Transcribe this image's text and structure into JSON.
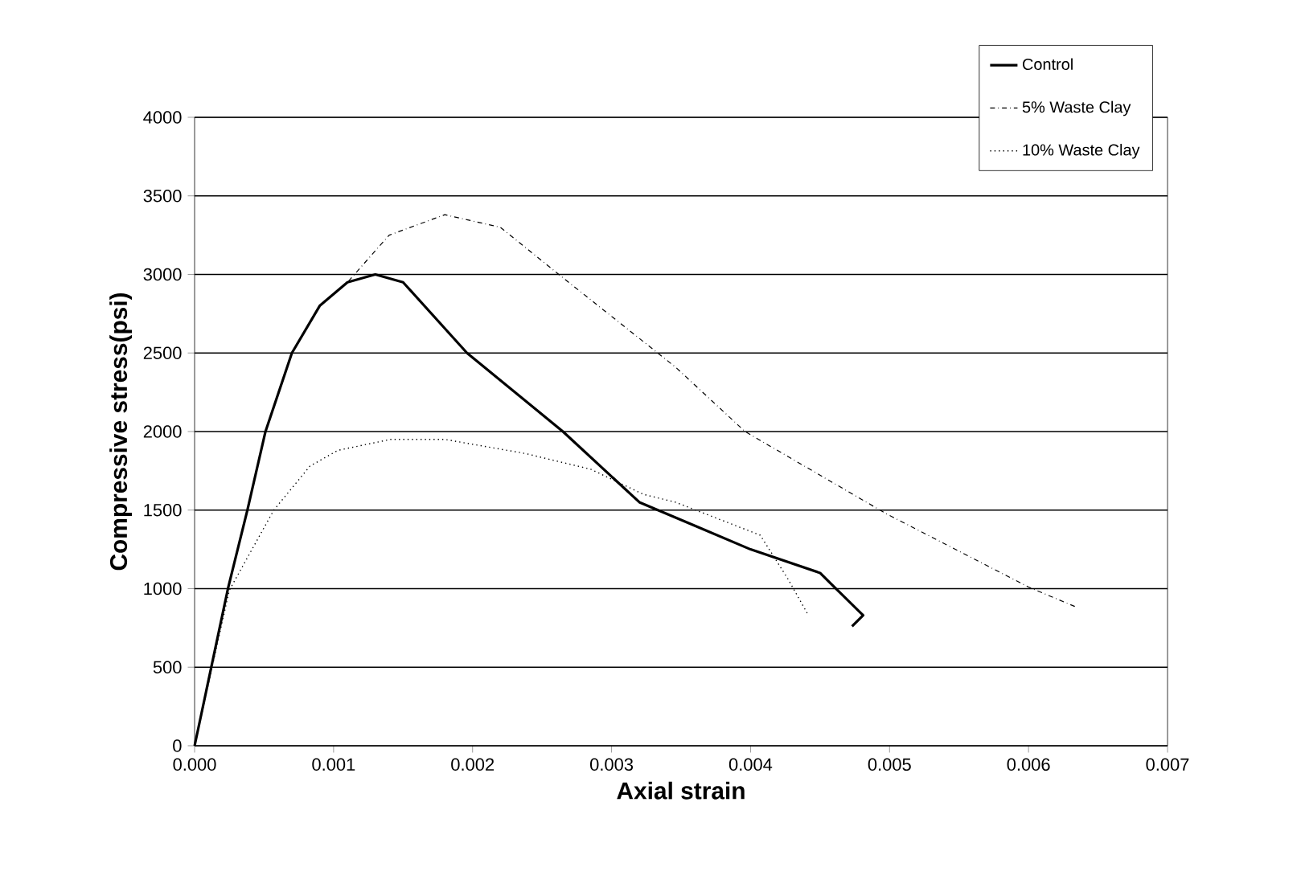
{
  "chart_data": {
    "type": "line",
    "xlabel": "Axial strain",
    "ylabel": "Compressive stress(psi)",
    "xlim": [
      0,
      0.007
    ],
    "ylim": [
      0,
      4000
    ],
    "xticks": [
      {
        "value": 0,
        "label": "0.000"
      },
      {
        "value": 0.001,
        "label": "0.001"
      },
      {
        "value": 0.002,
        "label": "0.002"
      },
      {
        "value": 0.003,
        "label": "0.003"
      },
      {
        "value": 0.004,
        "label": "0.004"
      },
      {
        "value": 0.005,
        "label": "0.005"
      },
      {
        "value": 0.006,
        "label": "0.006"
      },
      {
        "value": 0.007,
        "label": "0.007"
      }
    ],
    "yticks": [
      0,
      500,
      1000,
      1500,
      2000,
      2500,
      3000,
      3500,
      4000
    ],
    "grid": "y",
    "legend": "top right",
    "marker": "none",
    "series": [
      {
        "name": "Control",
        "color": "#000000",
        "line_style": "solid",
        "x": [
          0,
          0.00012,
          0.00024,
          0.00038,
          0.00051,
          0.0007,
          0.0009,
          0.0011,
          0.0013,
          0.0015,
          0.00196,
          0.00265,
          0.0032,
          0.0036,
          0.004,
          0.0045,
          0.00458,
          0.00481,
          0.00473
        ],
        "values": [
          0,
          500,
          1000,
          1500,
          2000,
          2500,
          2800,
          2950,
          3000,
          2950,
          2500,
          2000,
          1550,
          1400,
          1250,
          1100,
          1030,
          830,
          760
        ]
      },
      {
        "name": "5% Waste Clay",
        "color": "#000000",
        "line_style": "dashdot",
        "x": [
          0,
          0.00012,
          0.00024,
          0.00038,
          0.00051,
          0.0007,
          0.0009,
          0.0011,
          0.0014,
          0.0018,
          0.0022,
          0.00262,
          0.00346,
          0.00396,
          0.00497,
          0.006,
          0.00635
        ],
        "values": [
          0,
          500,
          1000,
          1500,
          2000,
          2500,
          2800,
          2950,
          3250,
          3380,
          3300,
          3000,
          2410,
          2000,
          1480,
          1010,
          880
        ]
      },
      {
        "name": "10% Waste Clay",
        "color": "#000000",
        "line_style": "dotted",
        "x": [
          0,
          0.00025,
          0.00057,
          0.00083,
          0.00103,
          0.00141,
          0.0018,
          0.00238,
          0.00285,
          0.00323,
          0.00346,
          0.00407,
          0.00427,
          0.00441
        ],
        "values": [
          0,
          990,
          1500,
          1780,
          1880,
          1950,
          1950,
          1860,
          1760,
          1600,
          1550,
          1340,
          1060,
          840
        ]
      }
    ]
  }
}
